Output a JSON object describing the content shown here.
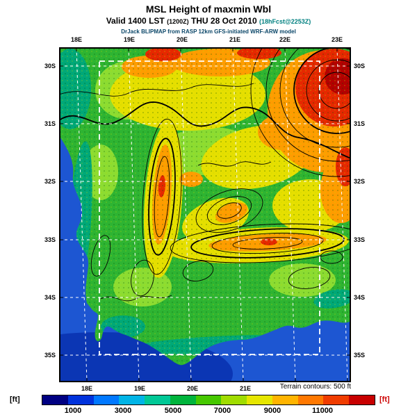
{
  "header": {
    "title": "MSL Height of maxmin Wbl",
    "valid_prefix": "Valid 1400 LST",
    "valid_zulu": "(1200Z)",
    "valid_date": "THU 28 Oct 2010",
    "valid_fcst": "(18hFcst@2253Z)",
    "model_line": "DrJack BLIPMAP from RASP 12km GFS-initiated WRF-ARW model"
  },
  "map": {
    "lon_labels_top": [
      "18E",
      "19E",
      "20E",
      "21E",
      "22E",
      "23E"
    ],
    "lon_labels_bottom": [
      "18E",
      "19E",
      "20E",
      "21E"
    ],
    "lat_labels_left": [
      "30S",
      "31S",
      "32S",
      "33S",
      "34S",
      "35S"
    ],
    "lat_labels_right": [
      "30S",
      "31S",
      "32S",
      "33S",
      "34S",
      "35S"
    ]
  },
  "footer": {
    "contour_note": "Terrain contours: 500 ft",
    "unit_left": "[ft]",
    "unit_right": "[ft]",
    "scale_labels": [
      "1000",
      "3000",
      "5000",
      "7000",
      "9000",
      "11000"
    ]
  },
  "colorbar": {
    "colors": [
      "#000082",
      "#0032dc",
      "#0078ff",
      "#00b4e6",
      "#00c896",
      "#00b43c",
      "#46c800",
      "#a0dc00",
      "#e6e600",
      "#ffb400",
      "#ff7800",
      "#f03c00",
      "#c80000"
    ]
  },
  "colors": {
    "ocean": "#1d56d2",
    "land_base": "#2eb432",
    "low_coastal": "#00a878",
    "mid_elevation": "#e6df00",
    "high_elevation": "#ff9c00",
    "highest_elevation": "#e62800",
    "grid_lines": "#ffffff",
    "contour_lines": "#000000",
    "forecast_text": "#008080",
    "unit_right_text": "#cc0000"
  },
  "chart_data": {
    "type": "heatmap",
    "title": "MSL Height of maxmin Wbl",
    "subtitle": "Valid 1400 LST (1200Z) THU 28 Oct 2010 (18hFcst@2253Z)",
    "attribution": "DrJack BLIPMAP from RASP 12km GFS-initiated WRF-ARW model",
    "units": "ft",
    "x_tick_labels": [
      "18E",
      "19E",
      "20E",
      "21E",
      "22E",
      "23E"
    ],
    "y_tick_labels": [
      "30S",
      "31S",
      "32S",
      "33S",
      "34S",
      "35S"
    ],
    "colorbar_tick_values": [
      1000,
      3000,
      5000,
      7000,
      9000,
      11000
    ],
    "colorbar_range_ft": [
      0,
      13000
    ],
    "contour_interval_ft": 500,
    "legend_note": "Terrain contours: 500 ft",
    "grid": true,
    "legend_position": "bottom"
  }
}
